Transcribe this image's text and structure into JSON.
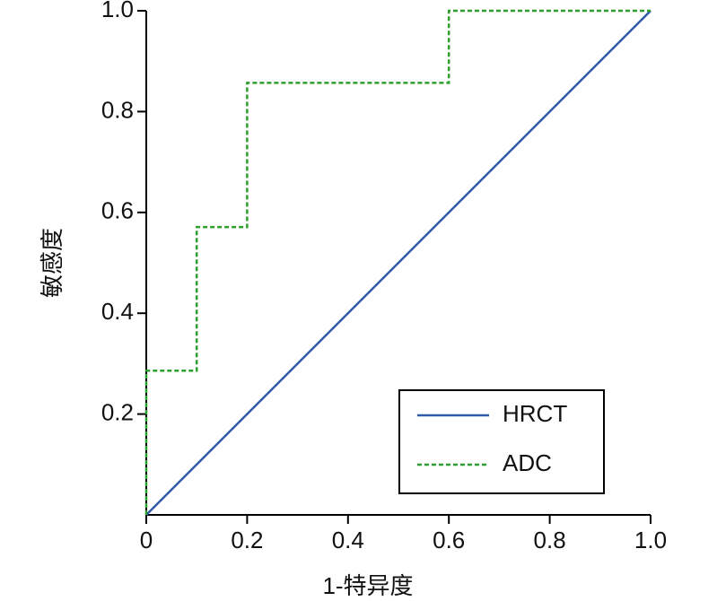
{
  "chart_data": {
    "type": "line",
    "xlabel": "1-特异度",
    "ylabel": "敏感度",
    "xlim": [
      0,
      1
    ],
    "ylim": [
      0,
      1
    ],
    "xticks": [
      0,
      0.2,
      0.4,
      0.6,
      0.8,
      {
        "value": 1,
        "label": "1.0"
      }
    ],
    "yticks": [
      0.2,
      0.4,
      0.6,
      0.8,
      {
        "value": 1,
        "label": "1.0"
      }
    ],
    "legend": "lower right",
    "series": [
      {
        "name": "HRCT",
        "color": "#2e5aa8",
        "line_style": "solid",
        "x": [
          0,
          1
        ],
        "values": [
          0,
          1
        ]
      },
      {
        "name": "ADC",
        "color": "#2ca02c",
        "line_style": "dashed",
        "x": [
          0,
          0,
          0.1,
          0.1,
          0.2,
          0.2,
          0.6,
          0.6,
          1
        ],
        "values": [
          0,
          0.286,
          0.286,
          0.571,
          0.571,
          0.857,
          0.857,
          1,
          1
        ]
      }
    ]
  }
}
